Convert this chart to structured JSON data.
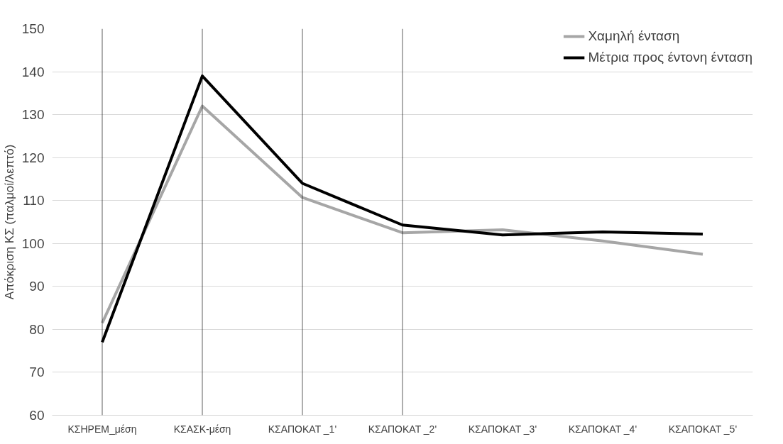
{
  "chart_data": {
    "type": "line",
    "ylabel": "Απόκριση ΚΣ (παλμοί/λεπτό)",
    "categories": [
      "ΚΣΗΡΕΜ_μέση",
      "ΚΣΑΣΚ-μέση",
      "ΚΣΑΠΟΚΑΤ _1'",
      "ΚΣΑΠΟΚΑΤ _2'",
      "ΚΣΑΠΟΚΑΤ _3'",
      "ΚΣΑΠΟΚΑΤ _4'",
      "ΚΣΑΠΟΚΑΤ _5'"
    ],
    "series": [
      {
        "name": "Χαμηλή ένταση",
        "color": "#a6a6a6",
        "values": [
          81.5,
          132,
          110.7,
          102.5,
          103.2,
          100.6,
          97.5
        ]
      },
      {
        "name": "Μέτρια προς έντονη ένταση",
        "color": "#000000",
        "values": [
          77,
          139,
          114,
          104.3,
          102,
          102.7,
          102.2
        ]
      }
    ],
    "ylim": [
      60,
      150
    ],
    "yticks": [
      60,
      70,
      80,
      90,
      100,
      110,
      120,
      130,
      140,
      150
    ],
    "ref_lines": [
      {
        "axis": "x",
        "value": "ΚΣΗΡΕΜ_μέση",
        "color": "#000000"
      },
      {
        "axis": "x",
        "value": "ΚΣΑΣΚ-μέση",
        "color": "#000000"
      },
      {
        "axis": "x",
        "value": "ΚΣΑΠΟΚΑΤ _1'",
        "color": "#000000"
      },
      {
        "axis": "x",
        "value": "ΚΣΑΠΟΚΑΤ _2'",
        "color": "#000000"
      }
    ],
    "grid": "y",
    "legend": "top right",
    "marker": "none",
    "line_style": "solid"
  }
}
